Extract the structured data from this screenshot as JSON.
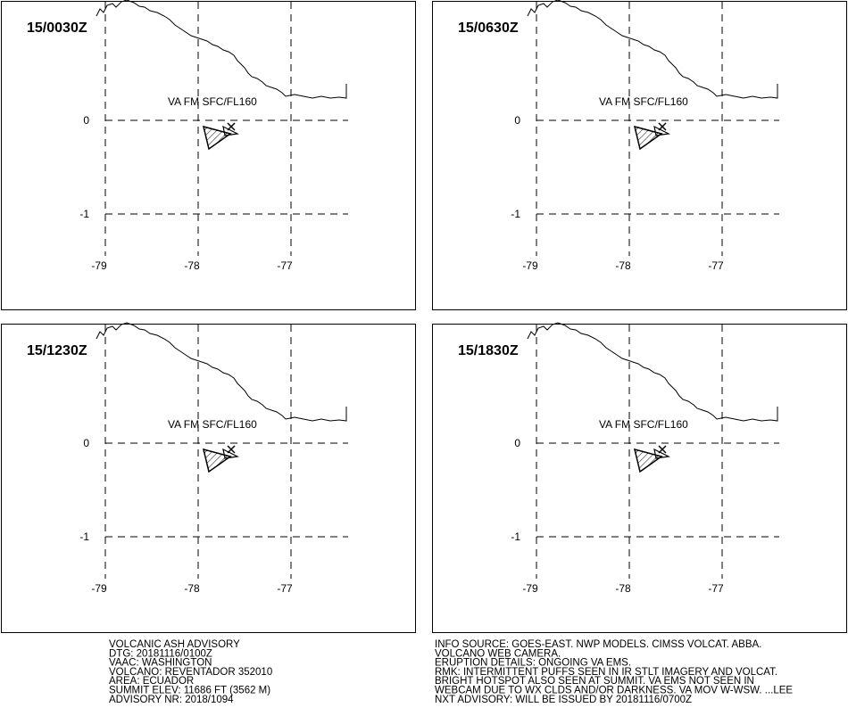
{
  "panels": [
    {
      "time_label": "15/0030Z",
      "va_label": "VA FM SFC/FL160",
      "lat_labels": [
        "0",
        "-1"
      ],
      "lon_labels": [
        "-79",
        "-78",
        "-77"
      ]
    },
    {
      "time_label": "15/0630Z",
      "va_label": "VA FM SFC/FL160",
      "lat_labels": [
        "0",
        "-1"
      ],
      "lon_labels": [
        "-79",
        "-78",
        "-77"
      ]
    },
    {
      "time_label": "15/1230Z",
      "va_label": "VA FM SFC/FL160",
      "lat_labels": [
        "0",
        "-1"
      ],
      "lon_labels": [
        "-79",
        "-78",
        "-77"
      ]
    },
    {
      "time_label": "15/1830Z",
      "va_label": "VA FM SFC/FL160",
      "lat_labels": [
        "0",
        "-1"
      ],
      "lon_labels": [
        "-79",
        "-78",
        "-77"
      ]
    }
  ],
  "advisory_left": [
    "VOLCANIC ASH ADVISORY",
    "DTG: 20181116/0100Z",
    "VAAC: WASHINGTON",
    "VOLCANO: REVENTADOR 352010",
    "AREA: ECUADOR",
    "SUMMIT ELEV: 11686 FT (3562 M)",
    "ADVISORY NR: 2018/1094"
  ],
  "advisory_right": [
    "INFO SOURCE: GOES-EAST. NWP MODELS. CIMSS VOLCAT. ABBA.",
    "VOLCANO WEB CAMERA.",
    "ERUPTION DETAILS: ONGOING VA EMS.",
    "RMK: INTERMITTENT PUFFS SEEN IN IR STLT IMAGERY AND VOLCAT.",
    "BRIGHT HOTSPOT ALSO SEEN AT SUMMIT. VA EMS NOT SEEN IN",
    "WEBCAM DUE TO WX CLDS AND/OR DARKNESS. VA MOV W-WSW. ...LEE",
    "NXT ADVISORY: WILL BE ISSUED BY 20181116/0700Z"
  ]
}
